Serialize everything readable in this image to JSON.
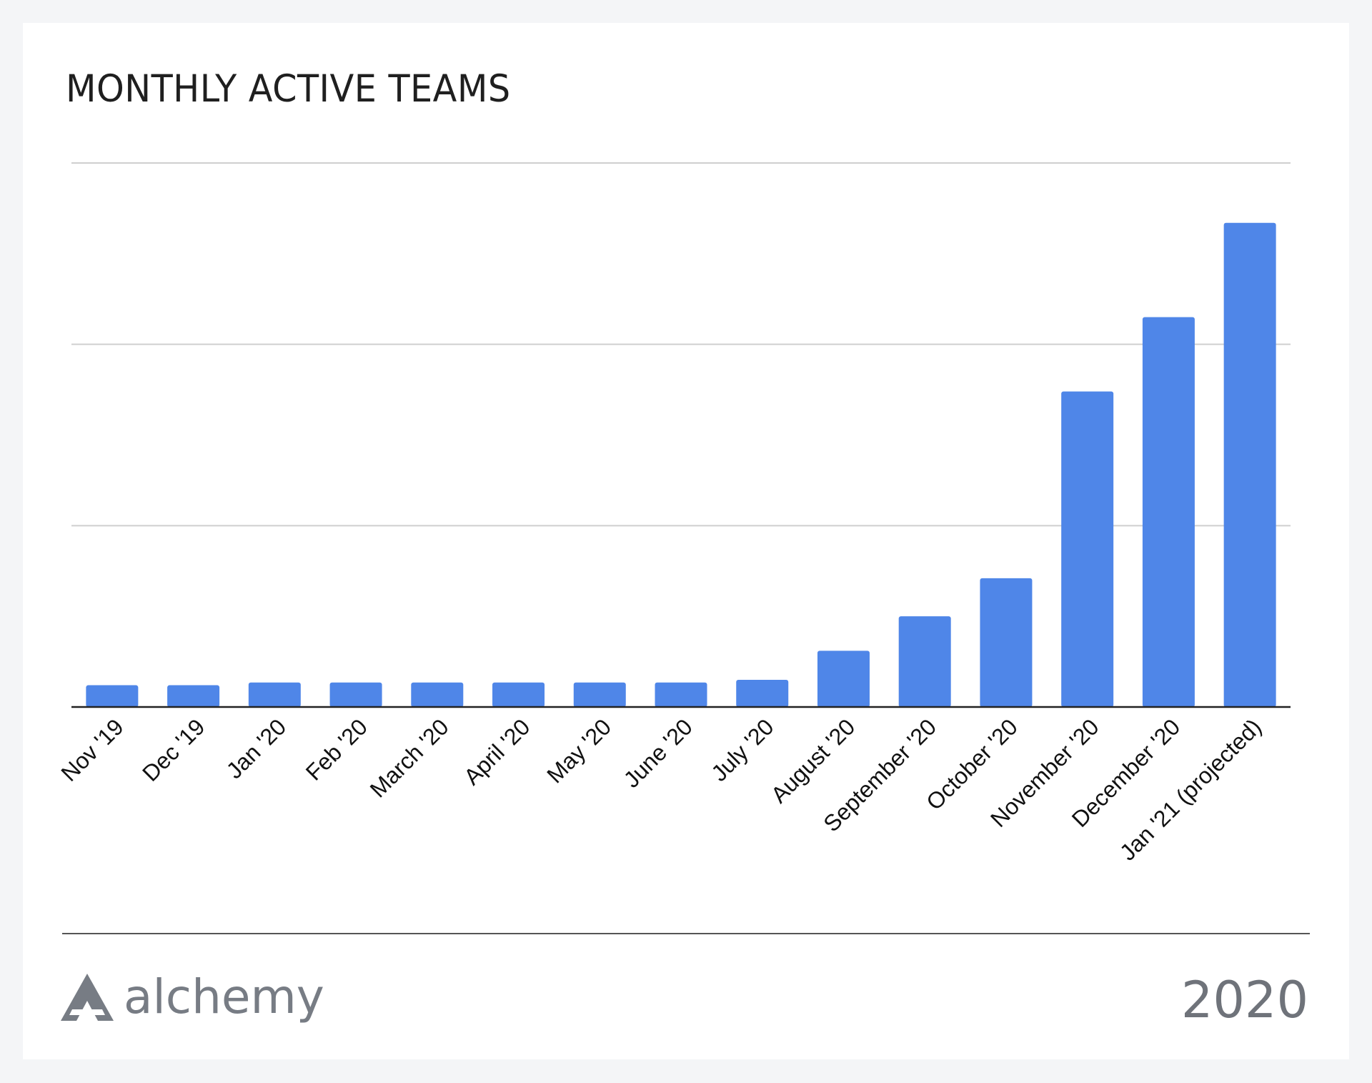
{
  "chart_data": {
    "type": "bar",
    "title": "MONTHLY ACTIVE TEAMS",
    "categories": [
      "Nov '19",
      "Dec '19",
      "Jan '20",
      "Feb '20",
      "March '20",
      "April '20",
      "May '20",
      "June '20",
      "July '20",
      "August '20",
      "September '20",
      "October '20",
      "November '20",
      "December '20",
      "Jan '21 (projected)"
    ],
    "values": [
      0.12,
      0.12,
      0.135,
      0.135,
      0.135,
      0.135,
      0.135,
      0.135,
      0.15,
      0.31,
      0.5,
      0.71,
      1.74,
      2.15,
      2.67
    ],
    "ylim": [
      0,
      3
    ],
    "y_gridlines": [
      1,
      2,
      3
    ],
    "y_tick_labels_shown": false,
    "grid": true,
    "bar_color": "#4f86e8",
    "xlabel": "",
    "ylabel": ""
  },
  "footer": {
    "brand": "alchemy",
    "year": "2020",
    "logo_color": "#777c84"
  }
}
